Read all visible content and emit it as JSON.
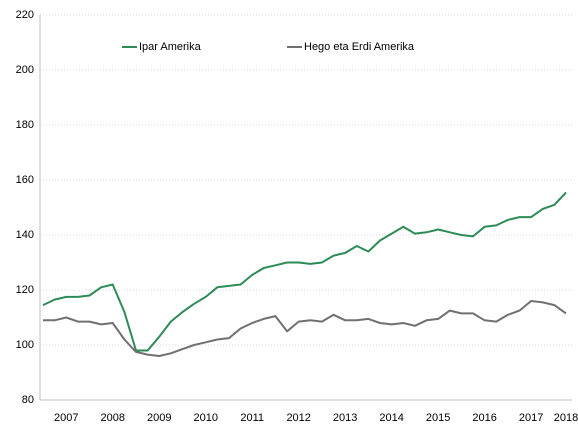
{
  "chart_data": {
    "type": "line",
    "categories": [
      null,
      null,
      "2007",
      null,
      null,
      null,
      "2008",
      null,
      null,
      null,
      "2009",
      null,
      null,
      null,
      "2010",
      null,
      null,
      null,
      "2011",
      null,
      null,
      null,
      "2012",
      null,
      null,
      null,
      "2013",
      null,
      null,
      null,
      "2014",
      null,
      null,
      null,
      "2015",
      null,
      null,
      null,
      "2016",
      null,
      null,
      null,
      "2017",
      null,
      null,
      "2018"
    ],
    "series": [
      {
        "name": "Ipar Amerika",
        "color": "#2e8b57",
        "values": [
          114.5,
          116.5,
          117.5,
          117.5,
          118,
          121,
          122,
          112,
          98,
          98,
          103,
          108.5,
          112,
          115,
          117.5,
          121,
          121.5,
          122,
          125.5,
          128,
          129,
          130,
          130,
          129.5,
          130,
          132.5,
          133.5,
          136,
          134,
          138,
          140.5,
          143,
          140.5,
          141,
          142,
          141,
          140,
          139.5,
          143,
          143.5,
          145.5,
          146.5,
          146.5,
          149.5,
          151,
          155.5
        ]
      },
      {
        "name": "Hego eta Erdi Amerika",
        "color": "#707070",
        "values": [
          109,
          109,
          110,
          108.5,
          108.5,
          107.5,
          108,
          102,
          97.5,
          96.5,
          96,
          97,
          98.5,
          100,
          101,
          102,
          102.5,
          106,
          108,
          109.5,
          110.5,
          105,
          108.5,
          109,
          108.5,
          111,
          109,
          109,
          109.5,
          108,
          107.5,
          108,
          107,
          109,
          109.5,
          112.5,
          111.5,
          111.5,
          109,
          108.5,
          111,
          112.5,
          116,
          115.5,
          114.5,
          111.5
        ]
      }
    ],
    "ylim": [
      80,
      220
    ],
    "yticks": [
      80,
      100,
      120,
      140,
      160,
      180,
      200,
      220
    ],
    "grid": true
  }
}
